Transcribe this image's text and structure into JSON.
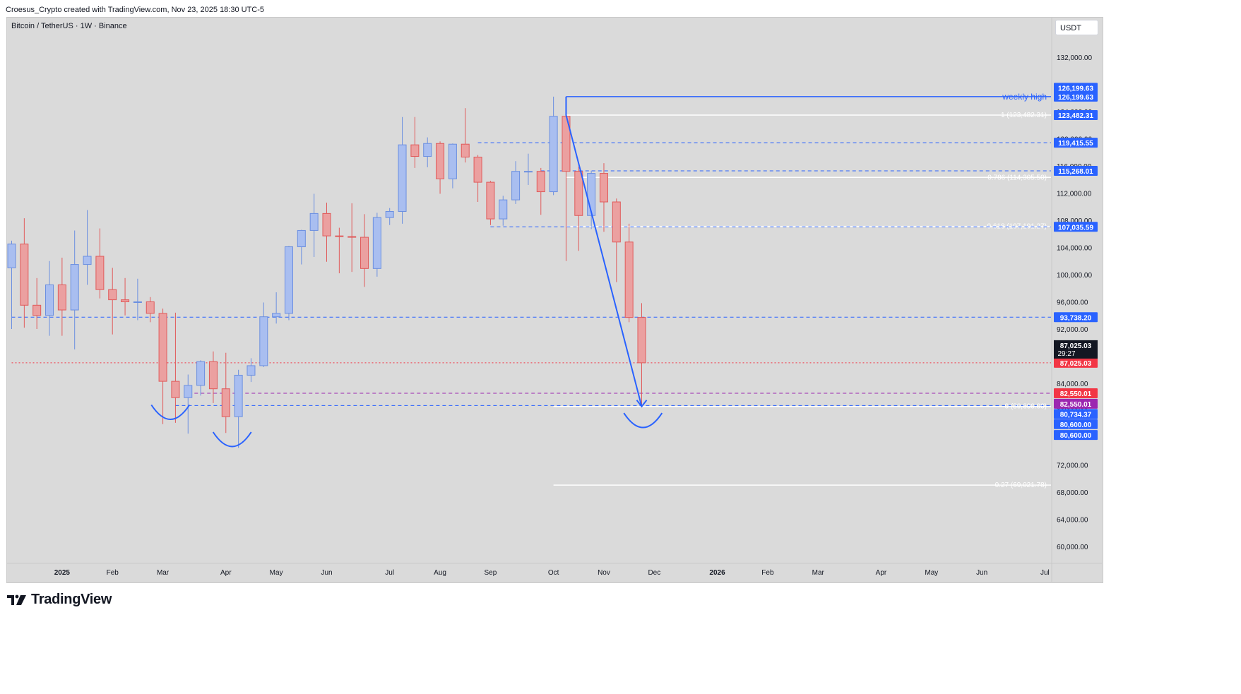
{
  "header": {
    "credit": "Croesus_Crypto created with TradingView.com, Nov 23, 2025 18:30 UTC-5"
  },
  "symbol": {
    "title": "Bitcoin / TetherUS · 1W · Binance",
    "currency_button": "USDT"
  },
  "branding": {
    "logo_text": "TradingView"
  },
  "colors": {
    "up": "#6b8fe0",
    "up_fill": "#a9bef0",
    "down": "#e05a5a",
    "down_fill": "#eba0a0",
    "line_blue": "#2962ff",
    "label_blue": "#2962ff",
    "label_red": "#f23645",
    "label_black": "#131722",
    "fib_white": "#ffffff",
    "purple": "#9c27b0"
  },
  "chart_data": {
    "type": "candlestick",
    "title": "Bitcoin / TetherUS · 1W · Binance",
    "y_axis": {
      "ylim": [
        58000,
        136000
      ],
      "ticks": [
        "60,000.00",
        "64,000.00",
        "68,000.00",
        "72,000.00",
        "80,600.00",
        "84,000.00",
        "92,000.00",
        "96,000.00",
        "100,000.00",
        "104,000.00",
        "108,000.00",
        "112,000.00",
        "116,000.00",
        "120,000.00",
        "124,000.00",
        "132,000.00"
      ]
    },
    "x_axis": {
      "ticks": [
        {
          "label": "2025",
          "week": 4,
          "bold": true
        },
        {
          "label": "Feb",
          "week": 8
        },
        {
          "label": "Mar",
          "week": 12
        },
        {
          "label": "Apr",
          "week": 17
        },
        {
          "label": "May",
          "week": 21
        },
        {
          "label": "Jun",
          "week": 25
        },
        {
          "label": "Jul",
          "week": 30
        },
        {
          "label": "Aug",
          "week": 34
        },
        {
          "label": "Sep",
          "week": 38
        },
        {
          "label": "Oct",
          "week": 43
        },
        {
          "label": "Nov",
          "week": 47
        },
        {
          "label": "Dec",
          "week": 51
        },
        {
          "label": "2026",
          "week": 56,
          "bold": true
        },
        {
          "label": "Feb",
          "week": 60
        },
        {
          "label": "Mar",
          "week": 64
        },
        {
          "label": "Apr",
          "week": 69
        },
        {
          "label": "May",
          "week": 73
        },
        {
          "label": "Jun",
          "week": 77
        },
        {
          "label": "Jul",
          "week": 82
        }
      ]
    },
    "candles": [
      {
        "o": 101000,
        "h": 105000,
        "l": 92000,
        "c": 104500
      },
      {
        "o": 104500,
        "h": 108300,
        "l": 92200,
        "c": 95500
      },
      {
        "o": 95500,
        "h": 99500,
        "l": 92000,
        "c": 94000
      },
      {
        "o": 94000,
        "h": 102000,
        "l": 91000,
        "c": 98500
      },
      {
        "o": 98500,
        "h": 102500,
        "l": 91000,
        "c": 94800
      },
      {
        "o": 94800,
        "h": 106500,
        "l": 89000,
        "c": 101500
      },
      {
        "o": 101500,
        "h": 109500,
        "l": 98500,
        "c": 102700
      },
      {
        "o": 102700,
        "h": 106800,
        "l": 96500,
        "c": 97800
      },
      {
        "o": 97800,
        "h": 101000,
        "l": 91200,
        "c": 96300
      },
      {
        "o": 96300,
        "h": 99500,
        "l": 94000,
        "c": 96000
      },
      {
        "o": 96000,
        "h": 99400,
        "l": 93300,
        "c": 96000
      },
      {
        "o": 96000,
        "h": 96700,
        "l": 93000,
        "c": 94300
      },
      {
        "o": 94300,
        "h": 95000,
        "l": 78000,
        "c": 84300
      },
      {
        "o": 84300,
        "h": 94400,
        "l": 78200,
        "c": 81900
      },
      {
        "o": 81900,
        "h": 85300,
        "l": 76600,
        "c": 83700
      },
      {
        "o": 83700,
        "h": 87400,
        "l": 82200,
        "c": 87200
      },
      {
        "o": 87200,
        "h": 88700,
        "l": 81100,
        "c": 83200
      },
      {
        "o": 83200,
        "h": 88500,
        "l": 76700,
        "c": 79100
      },
      {
        "o": 79100,
        "h": 86000,
        "l": 74500,
        "c": 85200
      },
      {
        "o": 85200,
        "h": 87700,
        "l": 84200,
        "c": 86600
      },
      {
        "o": 86600,
        "h": 95900,
        "l": 86400,
        "c": 93800
      },
      {
        "o": 93800,
        "h": 97400,
        "l": 92800,
        "c": 94300
      },
      {
        "o": 94300,
        "h": 104200,
        "l": 93300,
        "c": 104100
      },
      {
        "o": 104100,
        "h": 106600,
        "l": 101500,
        "c": 106500
      },
      {
        "o": 106500,
        "h": 111900,
        "l": 102600,
        "c": 109000
      },
      {
        "o": 109000,
        "h": 110600,
        "l": 101900,
        "c": 105700
      },
      {
        "o": 105700,
        "h": 106900,
        "l": 100200,
        "c": 105600
      },
      {
        "o": 105600,
        "h": 110500,
        "l": 100400,
        "c": 105500
      },
      {
        "o": 105500,
        "h": 108900,
        "l": 98200,
        "c": 100900
      },
      {
        "o": 100900,
        "h": 109100,
        "l": 99700,
        "c": 108400
      },
      {
        "o": 108400,
        "h": 109800,
        "l": 107300,
        "c": 109300
      },
      {
        "o": 109300,
        "h": 123200,
        "l": 107500,
        "c": 119100
      },
      {
        "o": 119100,
        "h": 123200,
        "l": 115700,
        "c": 117400
      },
      {
        "o": 117400,
        "h": 120200,
        "l": 115800,
        "c": 119300
      },
      {
        "o": 119300,
        "h": 119600,
        "l": 111900,
        "c": 114100
      },
      {
        "o": 114100,
        "h": 119300,
        "l": 112700,
        "c": 119200
      },
      {
        "o": 119200,
        "h": 124500,
        "l": 116500,
        "c": 117300
      },
      {
        "o": 117300,
        "h": 117600,
        "l": 110700,
        "c": 113600
      },
      {
        "o": 113600,
        "h": 113800,
        "l": 107300,
        "c": 108200
      },
      {
        "o": 108200,
        "h": 111600,
        "l": 107200,
        "c": 111000
      },
      {
        "o": 111000,
        "h": 116700,
        "l": 110400,
        "c": 115200
      },
      {
        "o": 115200,
        "h": 117800,
        "l": 113200,
        "c": 115200
      },
      {
        "o": 115200,
        "h": 115700,
        "l": 108800,
        "c": 112200
      },
      {
        "o": 112200,
        "h": 126199.63,
        "l": 111700,
        "c": 123300
      },
      {
        "o": 123300,
        "h": 126199.63,
        "l": 102000,
        "c": 115200
      },
      {
        "o": 115200,
        "h": 115900,
        "l": 103500,
        "c": 108700
      },
      {
        "o": 108700,
        "h": 115300,
        "l": 106700,
        "c": 114900
      },
      {
        "o": 114900,
        "h": 116400,
        "l": 106300,
        "c": 110700
      },
      {
        "o": 110700,
        "h": 111200,
        "l": 98900,
        "c": 104800
      },
      {
        "o": 104800,
        "h": 107500,
        "l": 93000,
        "c": 93700
      },
      {
        "o": 93700,
        "h": 95800,
        "l": 80600,
        "c": 87025.03
      }
    ],
    "levels": [
      {
        "price": 126199.63,
        "style": "solid",
        "color": "#2962ff",
        "text": "weekly high",
        "from_week": 44
      },
      {
        "price": 123482.31,
        "style": "solid",
        "color": "#ffffff",
        "text": "1 (123,482.31)",
        "from_week": 44
      },
      {
        "price": 119415.55,
        "style": "dashed",
        "color": "#2962ff",
        "text": "",
        "from_week": 37
      },
      {
        "price": 115268.01,
        "style": "dashed",
        "color": "#2962ff",
        "text": "",
        "from_week": 42
      },
      {
        "price": 114305.5,
        "style": "solid",
        "color": "#ffffff",
        "text": "0.786 (114,305.50)",
        "from_week": 44
      },
      {
        "price": 107101.27,
        "style": "solid",
        "color": "#ffffff",
        "text": "0.618 (107,101.27)",
        "from_week": 44
      },
      {
        "price": 107035.59,
        "style": "dashed",
        "color": "#2962ff",
        "text": "",
        "from_week": 38
      },
      {
        "price": 93738.2,
        "style": "dashed",
        "color": "#2962ff",
        "text": "",
        "from_week": 0
      },
      {
        "price": 87025.03,
        "style": "dotted",
        "color": "#f23645",
        "text": "",
        "from_week": 0
      },
      {
        "price": 82550.01,
        "style": "dashed",
        "color": "#9c27b0",
        "text": "",
        "from_week": 14
      },
      {
        "price": 80734.37,
        "style": "dashed",
        "color": "#2962ff",
        "text": "",
        "from_week": 13
      },
      {
        "price": 80600.0,
        "style": "solid",
        "color": "#ffffff",
        "text": "0 (80,600.00)",
        "from_week": 43
      },
      {
        "price": 69021.78,
        "style": "solid",
        "color": "#ffffff",
        "text": "-0.27 (69,021.78)",
        "from_week": 43
      }
    ],
    "price_labels": [
      {
        "text": "126,199.63",
        "price": 127500,
        "bg": "#2962ff"
      },
      {
        "text": "126,199.63",
        "price": 126199.63,
        "bg": "#2962ff"
      },
      {
        "text": "123,482.31",
        "price": 123482.31,
        "bg": "#2962ff"
      },
      {
        "text": "119,415.55",
        "price": 119415.55,
        "bg": "#2962ff"
      },
      {
        "text": "115,268.01",
        "price": 115268.01,
        "bg": "#2962ff"
      },
      {
        "text": "107,035.59",
        "price": 107035.59,
        "bg": "#2962ff"
      },
      {
        "text": "93,738.20",
        "price": 93738.2,
        "bg": "#2962ff"
      },
      {
        "text": "87,025.03",
        "price": 87025.03,
        "bg": "#f23645"
      },
      {
        "text": "82,550.01",
        "price": 82550.01,
        "bg": "#f23645"
      },
      {
        "text": "82,550.01",
        "price": 81000,
        "bg": "#9c27b0"
      },
      {
        "text": "80,734.37",
        "price": 79500,
        "bg": "#2962ff"
      },
      {
        "text": "80,600.00",
        "price": 78000,
        "bg": "#2962ff"
      },
      {
        "text": "80,600.00",
        "price": 76400,
        "bg": "#2962ff"
      }
    ],
    "last_price": {
      "price_text": "87,025.03",
      "countdown": "29:27",
      "price": 87025.03
    },
    "trend_line": [
      {
        "week": 44,
        "price": 126199.63
      },
      {
        "week": 44,
        "price": 123482.31
      },
      {
        "week": 50,
        "price": 80600
      }
    ],
    "pattern_arcs": [
      {
        "center_week": 12.6,
        "price": 80000,
        "kind": "small"
      },
      {
        "center_week": 17.5,
        "price": 76000,
        "kind": "small"
      },
      {
        "center_week": 50.1,
        "price": 78800,
        "kind": "small"
      }
    ]
  }
}
